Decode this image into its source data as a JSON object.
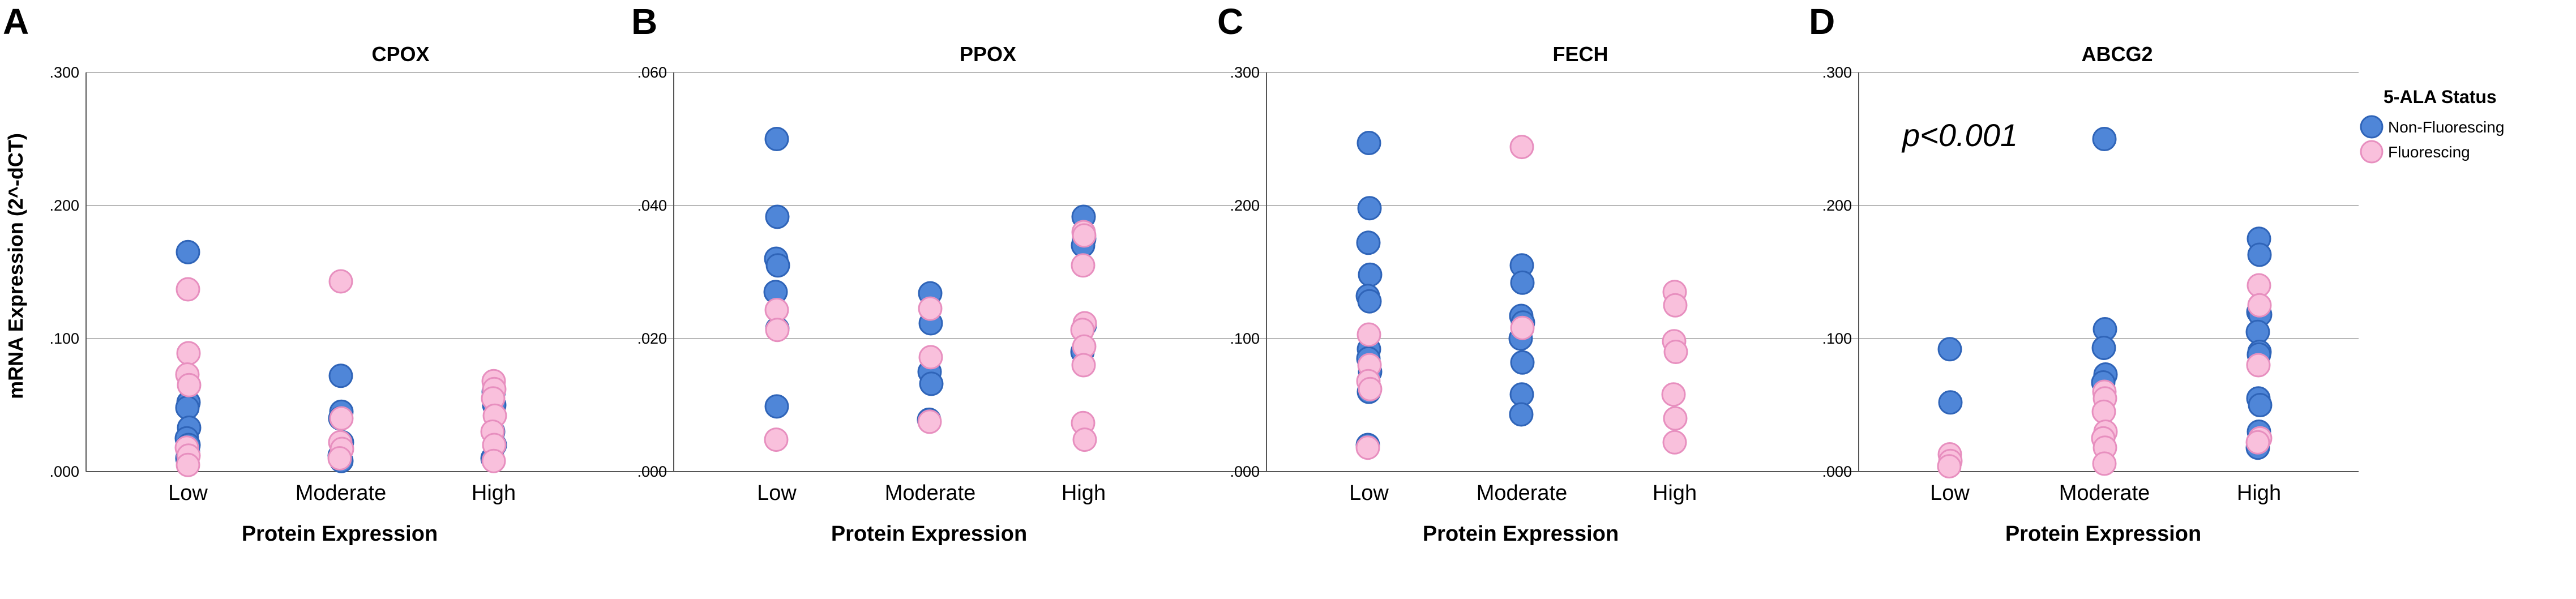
{
  "figure": {
    "ylabel": "mRNA Expression (2^-dCT)",
    "legend": {
      "title": "5-ALA Status",
      "entries": [
        {
          "name": "Non-Fluorescing",
          "color": "#4f86d8",
          "stroke": "#2f64b8"
        },
        {
          "name": "Fluorescing",
          "color": "#f9c0dc",
          "stroke": "#e78fbf"
        }
      ]
    }
  },
  "chart_data": [
    {
      "type": "scatter",
      "panel_label": "A",
      "title": "CPOX",
      "xlabel": "Protein Expression",
      "categories": [
        "Low",
        "Moderate",
        "High"
      ],
      "ylim": [
        0,
        0.3
      ],
      "yticks": [
        0,
        0.1,
        0.2,
        0.3
      ],
      "ytick_labels": [
        ".000",
        ".100",
        ".200",
        ".300"
      ],
      "series": [
        {
          "name": "Non-Fluorescing",
          "points": [
            [
              "Low",
              0.165
            ],
            [
              "Low",
              0.052
            ],
            [
              "Low",
              0.048
            ],
            [
              "Low",
              0.033
            ],
            [
              "Low",
              0.025
            ],
            [
              "Low",
              0.02
            ],
            [
              "Low",
              0.015
            ],
            [
              "Low",
              0.01
            ],
            [
              "Moderate",
              0.072
            ],
            [
              "Moderate",
              0.045
            ],
            [
              "Moderate",
              0.04
            ],
            [
              "Moderate",
              0.022
            ],
            [
              "Moderate",
              0.012
            ],
            [
              "Moderate",
              0.008
            ],
            [
              "High",
              0.06
            ],
            [
              "High",
              0.05
            ],
            [
              "High",
              0.03
            ],
            [
              "High",
              0.02
            ],
            [
              "High",
              0.01
            ]
          ]
        },
        {
          "name": "Fluorescing",
          "points": [
            [
              "Low",
              0.137
            ],
            [
              "Low",
              0.089
            ],
            [
              "Low",
              0.073
            ],
            [
              "Low",
              0.065
            ],
            [
              "Low",
              0.018
            ],
            [
              "Low",
              0.012
            ],
            [
              "Low",
              0.005
            ],
            [
              "Moderate",
              0.143
            ],
            [
              "Moderate",
              0.04
            ],
            [
              "Moderate",
              0.022
            ],
            [
              "Moderate",
              0.017
            ],
            [
              "Moderate",
              0.01
            ],
            [
              "High",
              0.068
            ],
            [
              "High",
              0.062
            ],
            [
              "High",
              0.055
            ],
            [
              "High",
              0.042
            ],
            [
              "High",
              0.03
            ],
            [
              "High",
              0.02
            ],
            [
              "High",
              0.008
            ]
          ]
        }
      ]
    },
    {
      "type": "scatter",
      "panel_label": "B",
      "title": "PPOX",
      "xlabel": "Protein Expression",
      "categories": [
        "Low",
        "Moderate",
        "High"
      ],
      "ylim": [
        0,
        0.06
      ],
      "yticks": [
        0,
        0.02,
        0.04,
        0.06
      ],
      "ytick_labels": [
        ".000",
        ".020",
        ".040",
        ".060"
      ],
      "series": [
        {
          "name": "Non-Fluorescing",
          "points": [
            [
              "Low",
              0.05
            ],
            [
              "Low",
              0.0383
            ],
            [
              "Low",
              0.032
            ],
            [
              "Low",
              0.031
            ],
            [
              "Low",
              0.027
            ],
            [
              "Low",
              0.0215
            ],
            [
              "Low",
              0.0098
            ],
            [
              "Moderate",
              0.0268
            ],
            [
              "Moderate",
              0.0223
            ],
            [
              "Moderate",
              0.015
            ],
            [
              "Moderate",
              0.0132
            ],
            [
              "Moderate",
              0.0078
            ],
            [
              "High",
              0.0383
            ],
            [
              "High",
              0.035
            ],
            [
              "High",
              0.034
            ],
            [
              "High",
              0.022
            ],
            [
              "High",
              0.018
            ]
          ]
        },
        {
          "name": "Fluorescing",
          "points": [
            [
              "Low",
              0.0243
            ],
            [
              "Low",
              0.0213
            ],
            [
              "Low",
              0.0048
            ],
            [
              "Moderate",
              0.0245
            ],
            [
              "Moderate",
              0.0172
            ],
            [
              "Moderate",
              0.0075
            ],
            [
              "High",
              0.036
            ],
            [
              "High",
              0.0355
            ],
            [
              "High",
              0.031
            ],
            [
              "High",
              0.0223
            ],
            [
              "High",
              0.0213
            ],
            [
              "High",
              0.0188
            ],
            [
              "High",
              0.016
            ],
            [
              "High",
              0.0073
            ],
            [
              "High",
              0.0048
            ]
          ]
        }
      ]
    },
    {
      "type": "scatter",
      "panel_label": "C",
      "title": "FECH",
      "xlabel": "Protein Expression",
      "categories": [
        "Low",
        "Moderate",
        "High"
      ],
      "ylim": [
        0,
        0.3
      ],
      "yticks": [
        0,
        0.1,
        0.2,
        0.3
      ],
      "ytick_labels": [
        ".000",
        ".100",
        ".200",
        ".300"
      ],
      "series": [
        {
          "name": "Non-Fluorescing",
          "points": [
            [
              "Low",
              0.247
            ],
            [
              "Low",
              0.198
            ],
            [
              "Low",
              0.172
            ],
            [
              "Low",
              0.148
            ],
            [
              "Low",
              0.132
            ],
            [
              "Low",
              0.128
            ],
            [
              "Low",
              0.092
            ],
            [
              "Low",
              0.085
            ],
            [
              "Low",
              0.075
            ],
            [
              "Low",
              0.06
            ],
            [
              "Low",
              0.02
            ],
            [
              "Moderate",
              0.155
            ],
            [
              "Moderate",
              0.142
            ],
            [
              "Moderate",
              0.117
            ],
            [
              "Moderate",
              0.112
            ],
            [
              "Moderate",
              0.1
            ],
            [
              "Moderate",
              0.082
            ],
            [
              "Moderate",
              0.058
            ],
            [
              "Moderate",
              0.043
            ]
          ]
        },
        {
          "name": "Fluorescing",
          "points": [
            [
              "Low",
              0.103
            ],
            [
              "Low",
              0.08
            ],
            [
              "Low",
              0.068
            ],
            [
              "Low",
              0.062
            ],
            [
              "Low",
              0.018
            ],
            [
              "Moderate",
              0.244
            ],
            [
              "Moderate",
              0.108
            ],
            [
              "High",
              0.135
            ],
            [
              "High",
              0.125
            ],
            [
              "High",
              0.098
            ],
            [
              "High",
              0.09
            ],
            [
              "High",
              0.058
            ],
            [
              "High",
              0.04
            ],
            [
              "High",
              0.022
            ]
          ]
        }
      ]
    },
    {
      "type": "scatter",
      "panel_label": "D",
      "title": "ABCG2",
      "xlabel": "Protein Expression",
      "categories": [
        "Low",
        "Moderate",
        "High"
      ],
      "ylim": [
        0,
        0.3
      ],
      "yticks": [
        0,
        0.1,
        0.2,
        0.3
      ],
      "ytick_labels": [
        ".000",
        ".100",
        ".200",
        ".300"
      ],
      "annotation": "p<0.001",
      "series": [
        {
          "name": "Non-Fluorescing",
          "points": [
            [
              "Low",
              0.092
            ],
            [
              "Low",
              0.052
            ],
            [
              "Moderate",
              0.25
            ],
            [
              "Moderate",
              0.107
            ],
            [
              "Moderate",
              0.093
            ],
            [
              "Moderate",
              0.073
            ],
            [
              "Moderate",
              0.067
            ],
            [
              "High",
              0.175
            ],
            [
              "High",
              0.163
            ],
            [
              "High",
              0.12
            ],
            [
              "High",
              0.118
            ],
            [
              "High",
              0.105
            ],
            [
              "High",
              0.09
            ],
            [
              "High",
              0.088
            ],
            [
              "High",
              0.055
            ],
            [
              "High",
              0.05
            ],
            [
              "High",
              0.03
            ],
            [
              "High",
              0.018
            ]
          ]
        },
        {
          "name": "Fluorescing",
          "points": [
            [
              "Low",
              0.013
            ],
            [
              "Low",
              0.008
            ],
            [
              "Low",
              0.004
            ],
            [
              "Moderate",
              0.06
            ],
            [
              "Moderate",
              0.055
            ],
            [
              "Moderate",
              0.045
            ],
            [
              "Moderate",
              0.03
            ],
            [
              "Moderate",
              0.025
            ],
            [
              "Moderate",
              0.018
            ],
            [
              "Moderate",
              0.006
            ],
            [
              "High",
              0.14
            ],
            [
              "High",
              0.125
            ],
            [
              "High",
              0.08
            ],
            [
              "High",
              0.025
            ],
            [
              "High",
              0.022
            ]
          ]
        }
      ]
    }
  ]
}
